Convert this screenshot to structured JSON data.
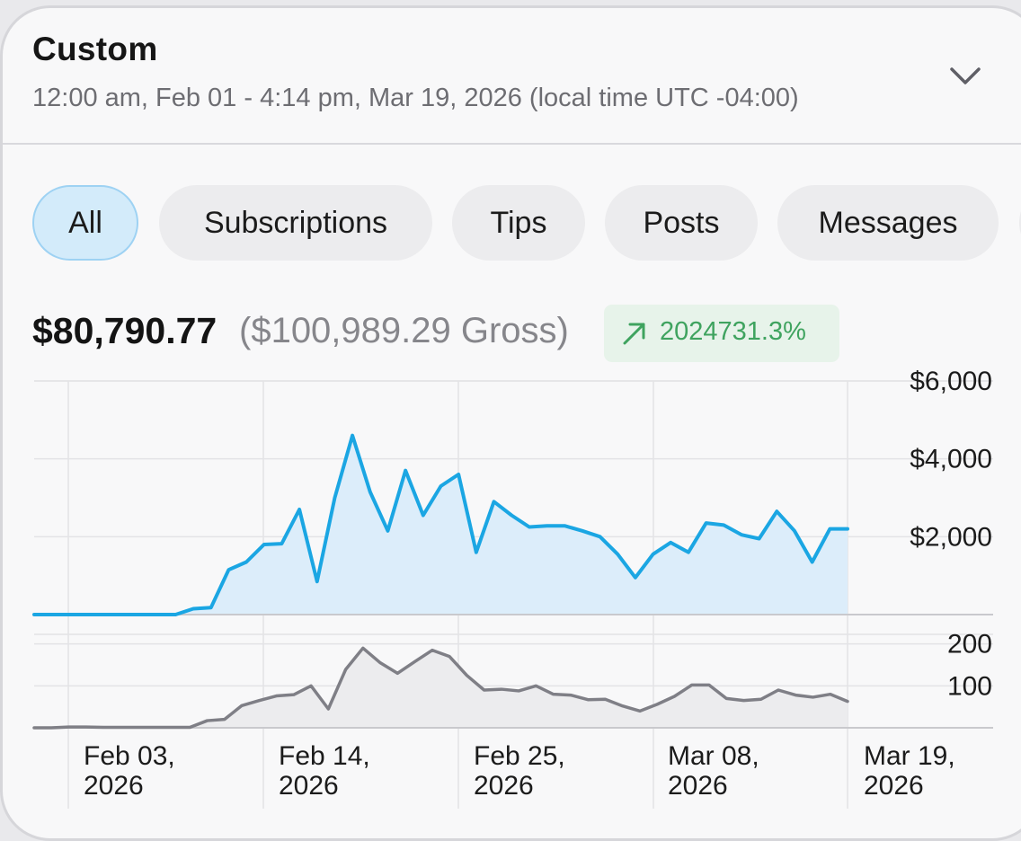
{
  "header": {
    "title": "Custom",
    "range": "12:00 am, Feb 01 - 4:14 pm, Mar 19, 2026 (local time UTC -04:00)",
    "expand_icon": "chevron-down-icon"
  },
  "filters": [
    {
      "label": "All",
      "active": true
    },
    {
      "label": "Subscriptions",
      "active": false
    },
    {
      "label": "Tips",
      "active": false
    },
    {
      "label": "Posts",
      "active": false
    },
    {
      "label": "Messages",
      "active": false
    }
  ],
  "summary": {
    "net": "$80,790.77",
    "gross": "($100,989.29 Gross)",
    "change": "2024731.3%",
    "change_icon": "trend-up-arrow-icon"
  },
  "colors": {
    "earnings_line": "#1ba6e3",
    "earnings_fill": "#dcedfa",
    "count_line": "#7f7f86",
    "count_fill": "#ececee",
    "positive": "#3fa35f",
    "active_chip": "#d3ebfa"
  },
  "chart_data": [
    {
      "type": "area",
      "x_range": [
        "2026-02-01",
        "2026-03-19"
      ],
      "yticks": [
        {
          "value": 2000,
          "label": "$2,000"
        },
        {
          "value": 4000,
          "label": "$4,000"
        },
        {
          "value": 6000,
          "label": "$6,000"
        }
      ],
      "ylim": [
        0,
        6000
      ],
      "grid": true,
      "x": [
        "2026-02-01",
        "2026-02-02",
        "2026-02-03",
        "2026-02-04",
        "2026-02-05",
        "2026-02-06",
        "2026-02-07",
        "2026-02-08",
        "2026-02-09",
        "2026-02-10",
        "2026-02-11",
        "2026-02-12",
        "2026-02-13",
        "2026-02-14",
        "2026-02-15",
        "2026-02-16",
        "2026-02-17",
        "2026-02-18",
        "2026-02-19",
        "2026-02-20",
        "2026-02-21",
        "2026-02-22",
        "2026-02-23",
        "2026-02-24",
        "2026-02-25",
        "2026-02-26",
        "2026-02-27",
        "2026-02-28",
        "2026-03-01",
        "2026-03-02",
        "2026-03-03",
        "2026-03-04",
        "2026-03-05",
        "2026-03-06",
        "2026-03-07",
        "2026-03-08",
        "2026-03-09",
        "2026-03-10",
        "2026-03-11",
        "2026-03-12",
        "2026-03-13",
        "2026-03-14",
        "2026-03-15",
        "2026-03-16",
        "2026-03-17",
        "2026-03-18",
        "2026-03-19"
      ],
      "series": [
        {
          "values": [
            0,
            0,
            0,
            0,
            0,
            0,
            0,
            0,
            0,
            150,
            180,
            1150,
            1350,
            1800,
            1820,
            2700,
            850,
            3000,
            4600,
            3150,
            2150,
            3700,
            2550,
            3300,
            3600,
            1600,
            2900,
            2550,
            2250,
            2280,
            2280,
            2150,
            2000,
            1550,
            950,
            1550,
            1850,
            1600,
            2350,
            2300,
            2050,
            1950,
            2650,
            2150,
            1350,
            2200,
            2200
          ]
        }
      ]
    },
    {
      "type": "area",
      "x_range": [
        "2026-02-01",
        "2026-03-19"
      ],
      "yticks": [
        {
          "value": 100,
          "label": "100"
        },
        {
          "value": 200,
          "label": "200"
        }
      ],
      "ylim": [
        0,
        240
      ],
      "grid": true,
      "xticks": [
        "Feb 03, 2026",
        "Feb 14, 2026",
        "Feb 25, 2026",
        "Mar 08, 2026",
        "Mar 19, 2026"
      ],
      "series": [
        {
          "values": [
            0,
            0,
            2,
            2,
            1,
            1,
            1,
            1,
            1,
            1,
            17,
            20,
            53,
            65,
            76,
            79,
            100,
            45,
            139,
            190,
            155,
            130,
            158,
            185,
            170,
            125,
            90,
            92,
            88,
            100,
            80,
            78,
            67,
            68,
            52,
            40,
            56,
            75,
            102,
            102,
            70,
            65,
            68,
            90,
            78,
            73,
            80,
            63
          ]
        }
      ]
    }
  ]
}
